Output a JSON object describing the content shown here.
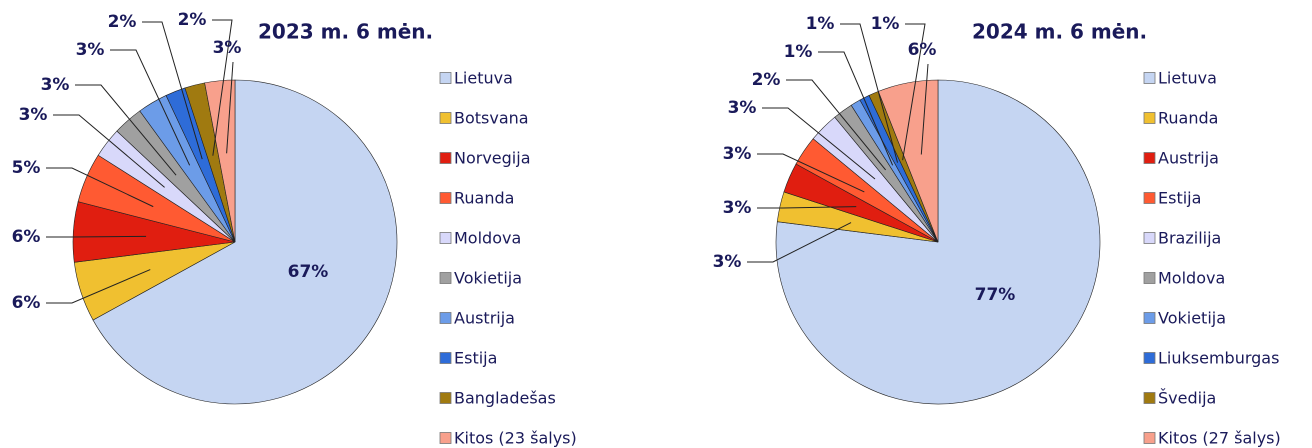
{
  "chart_data": [
    {
      "type": "pie",
      "title": "2023 m. 6 mėn.",
      "categories": [
        "Lietuva",
        "Botsvana",
        "Norvegija",
        "Ruanda",
        "Moldova",
        "Vokietija",
        "Austrija",
        "Estija",
        "Bangladešas",
        "Kitos (23 šalys)"
      ],
      "values": [
        67,
        6,
        6,
        5,
        3,
        3,
        3,
        2,
        2,
        3
      ],
      "value_labels": [
        "67%",
        "6%",
        "6%",
        "5%",
        "3%",
        "3%",
        "3%",
        "2%",
        "2%",
        "3%"
      ],
      "colors": [
        "#c5d5f2",
        "#f0c030",
        "#e01e10",
        "#ff5a32",
        "#d8d8fa",
        "#a0a0a0",
        "#6c9ce8",
        "#2e6cd8",
        "#a07a10",
        "#f8a08c"
      ]
    },
    {
      "type": "pie",
      "title": "2024 m. 6 mėn.",
      "categories": [
        "Lietuva",
        "Ruanda",
        "Austrija",
        "Estija",
        "Brazilija",
        "Moldova",
        "Vokietija",
        "Liuksemburgas",
        "Švedija",
        "Kitos (27 šalys)"
      ],
      "values": [
        77,
        3,
        3,
        3,
        3,
        2,
        1,
        1,
        1,
        6
      ],
      "value_labels": [
        "77%",
        "3%",
        "3%",
        "3%",
        "3%",
        "2%",
        "1%",
        "1%",
        "1%",
        "6%"
      ],
      "colors": [
        "#c5d5f2",
        "#f0c030",
        "#e01e10",
        "#ff5a32",
        "#d8d8fa",
        "#a0a0a0",
        "#6c9ce8",
        "#2e6cd8",
        "#a07a10",
        "#f8a08c"
      ]
    }
  ]
}
